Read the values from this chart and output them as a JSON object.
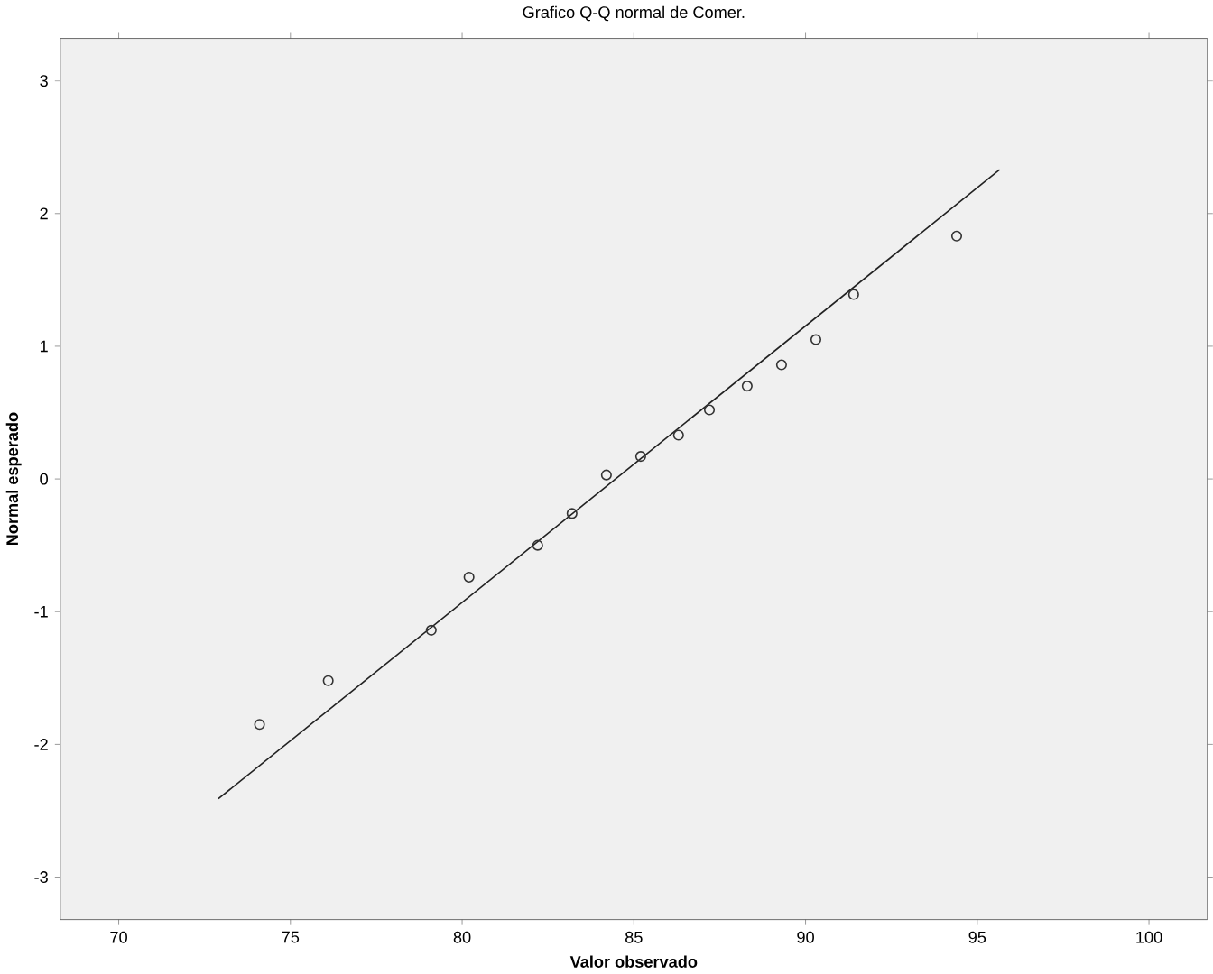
{
  "chart_data": {
    "type": "scatter",
    "title": "Grafico Q-Q normal de Comer.",
    "xlabel": "Valor observado",
    "ylabel": "Normal esperado",
    "xlim": [
      68.3,
      101.7
    ],
    "ylim": [
      -3.32,
      3.32
    ],
    "xticks": [
      70,
      75,
      80,
      85,
      90,
      95,
      100
    ],
    "yticks": [
      -3,
      -2,
      -1,
      0,
      1,
      2,
      3
    ],
    "grid": false,
    "series": [
      {
        "color": "#333333",
        "marker": "circle",
        "x": [
          74.1,
          76.1,
          79.1,
          80.2,
          82.2,
          83.2,
          84.2,
          85.2,
          86.3,
          87.2,
          88.3,
          89.3,
          90.3,
          91.4,
          94.4
        ],
        "values": [
          -1.85,
          -1.52,
          -1.14,
          -0.74,
          -0.5,
          -0.26,
          0.03,
          0.17,
          0.33,
          0.52,
          0.7,
          0.86,
          1.05,
          1.39,
          1.83
        ]
      },
      {
        "type": "line",
        "marker": "none",
        "color": "#222222",
        "x": [
          72.9,
          95.65
        ],
        "values": [
          -2.41,
          2.33
        ]
      }
    ]
  }
}
